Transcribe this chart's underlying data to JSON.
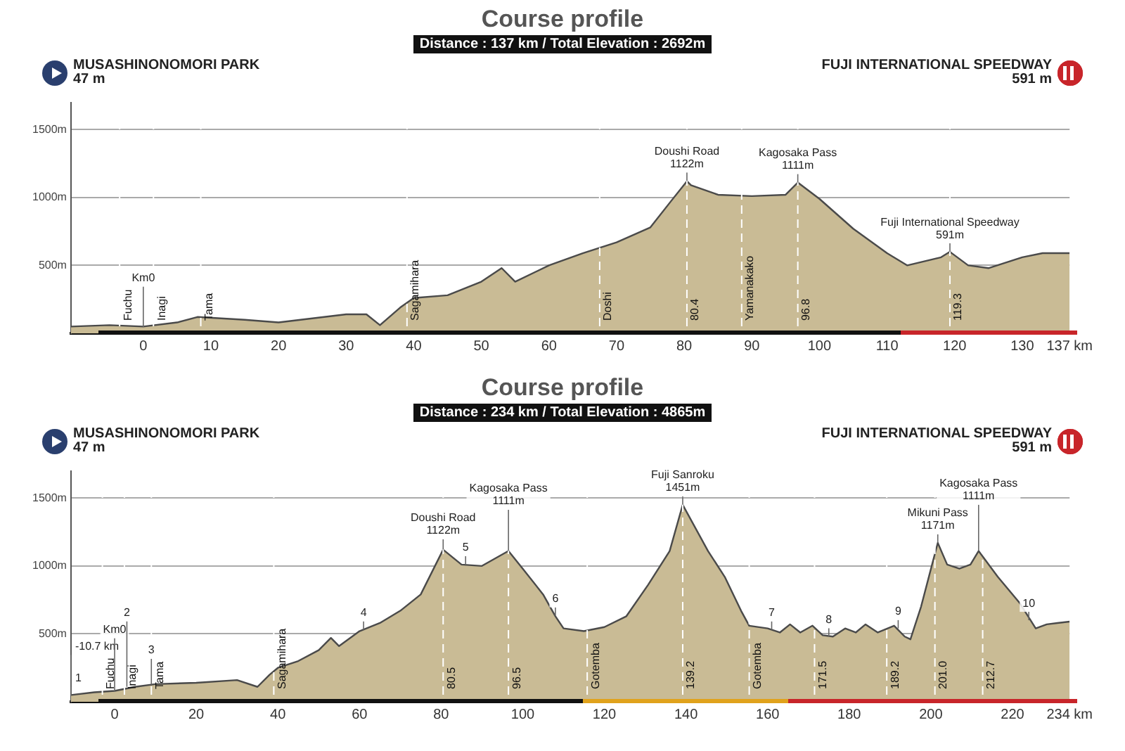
{
  "chart_data": [
    {
      "type": "area",
      "title": "Course profile",
      "subtitle": "Distance : 137 km / Total Elevation : 2692m",
      "x": [
        -10.7,
        -5,
        0,
        5,
        8,
        15,
        20,
        30,
        33,
        35,
        38,
        40,
        45,
        50,
        53,
        55,
        60,
        65,
        70,
        75,
        78,
        80.4,
        81,
        85,
        90,
        95,
        96.8,
        100,
        105,
        110,
        113,
        118,
        119.3,
        122,
        125,
        130,
        133,
        137
      ],
      "series": [
        {
          "color": "#c9bb95",
          "values": [
            50,
            60,
            50,
            80,
            120,
            100,
            80,
            140,
            140,
            60,
            190,
            260,
            280,
            380,
            480,
            380,
            500,
            590,
            670,
            780,
            970,
            1120,
            1090,
            1020,
            1010,
            1020,
            1110,
            990,
            770,
            590,
            500,
            560,
            600,
            500,
            480,
            560,
            590,
            590
          ]
        }
      ],
      "xlim": [
        -10.7,
        137
      ],
      "xticks": [
        0,
        10,
        20,
        30,
        40,
        50,
        60,
        70,
        80,
        90,
        100,
        110,
        120,
        130,
        {
          "value": 137,
          "label": "137 km"
        }
      ],
      "ylim": [
        0,
        1700
      ],
      "yticks": [
        {
          "value": 500,
          "label": "500m"
        },
        {
          "value": 1000,
          "label": "1000m"
        },
        {
          "value": 1500,
          "label": "1500m"
        }
      ],
      "grid": "y",
      "legend": false,
      "marker": "none",
      "line_style": "solid",
      "ref_lines": [
        {
          "axis": "x",
          "value": -3.5,
          "label": "Fuchu"
        },
        {
          "axis": "x",
          "value": 1.5,
          "label": "Inagi"
        },
        {
          "axis": "x",
          "value": 8.5,
          "label": "Tama"
        },
        {
          "axis": "x",
          "value": 39,
          "label": "Sagamihara"
        },
        {
          "axis": "x",
          "value": 67.5,
          "label": "Doshi"
        },
        {
          "axis": "x",
          "value": 80.4,
          "label": "80.4"
        },
        {
          "axis": "x",
          "value": 88.5,
          "label": "Yamanakako"
        },
        {
          "axis": "x",
          "value": 96.8,
          "label": "96.8"
        },
        {
          "axis": "x",
          "value": 119.3,
          "label": "119.3"
        }
      ],
      "annotations": [
        "MUSASHINONOMORI PARK\n47 m",
        "FUJI INTERNATIONAL SPEEDWAY\n591 m",
        {
          "text": "Km0",
          "x": 0,
          "y": 47
        },
        {
          "text": "Doushi Road\n1122m",
          "x": 80.4,
          "y": 1122
        },
        {
          "text": "Kagosaka Pass\n1111m",
          "x": 96.8,
          "y": 1111
        },
        {
          "text": "Fuji International Speedway\n591m",
          "x": 119.3,
          "y": 600
        }
      ]
    },
    {
      "type": "area",
      "title": "Course profile",
      "subtitle": "Distance : 234 km / Total Elevation : 4865m",
      "x": [
        -10.7,
        -5,
        0,
        5,
        10,
        20,
        30,
        35,
        38,
        40,
        45,
        50,
        53,
        55,
        60,
        65,
        70,
        75,
        80.5,
        85,
        90,
        96.5,
        100,
        105,
        108,
        110,
        115,
        120,
        125.4,
        130.7,
        136,
        139.2,
        145.4,
        149.5,
        153.5,
        155.5,
        160,
        163,
        165.5,
        168,
        171,
        173.5,
        176,
        179,
        181.6,
        184,
        187,
        191,
        193.6,
        195,
        197.6,
        200.3,
        201.7,
        204,
        207,
        209.7,
        211.7,
        216.4,
        221.7,
        225.7,
        228.4,
        231,
        234
      ],
      "series": [
        {
          "color": "#c9bb95",
          "values": [
            50,
            70,
            80,
            110,
            130,
            140,
            160,
            110,
            200,
            250,
            300,
            380,
            470,
            410,
            520,
            580,
            670,
            790,
            1120,
            1010,
            1000,
            1110,
            980,
            790,
            630,
            540,
            520,
            550,
            630,
            860,
            1110,
            1450,
            1110,
            920,
            670,
            560,
            540,
            510,
            570,
            510,
            560,
            490,
            480,
            540,
            510,
            570,
            510,
            560,
            480,
            460,
            700,
            1010,
            1170,
            1010,
            980,
            1010,
            1110,
            920,
            730,
            540,
            570,
            580,
            590
          ]
        }
      ],
      "xlim": [
        -10.7,
        234
      ],
      "xticks": [
        0,
        20,
        40,
        60,
        80,
        100,
        120,
        140,
        160,
        180,
        200,
        220,
        {
          "value": 234,
          "label": "234 km"
        }
      ],
      "ylim": [
        0,
        1700
      ],
      "yticks": [
        {
          "value": 500,
          "label": "500m"
        },
        {
          "value": 1000,
          "label": "1000m"
        },
        {
          "value": 1500,
          "label": "1500m"
        }
      ],
      "grid": "y",
      "legend": false,
      "marker": "none",
      "line_style": "solid",
      "ref_lines": [
        {
          "axis": "x",
          "value": -3,
          "label": "Fuchu"
        },
        {
          "axis": "x",
          "value": 2.4,
          "label": "Inagi"
        },
        {
          "axis": "x",
          "value": 9,
          "label": "Tama"
        },
        {
          "axis": "x",
          "value": 39,
          "label": "Sagamihara"
        },
        {
          "axis": "x",
          "value": 80.5,
          "label": "80.5"
        },
        {
          "axis": "x",
          "value": 96.5,
          "label": "96.5"
        },
        {
          "axis": "x",
          "value": 115.8,
          "label": "Gotemba"
        },
        {
          "axis": "x",
          "value": 139.2,
          "label": "139.2"
        },
        {
          "axis": "x",
          "value": 155.5,
          "label": "Gotemba"
        },
        {
          "axis": "x",
          "value": 171.5,
          "label": "171.5"
        },
        {
          "axis": "x",
          "value": 189.2,
          "label": "189.2"
        },
        {
          "axis": "x",
          "value": 201.0,
          "label": "201.0"
        },
        {
          "axis": "x",
          "value": 212.7,
          "label": "212.7"
        }
      ],
      "annotations": [
        "MUSASHINONOMORI PARK\n47 m",
        "FUJI INTERNATIONAL SPEEDWAY\n591 m",
        {
          "text": "-10.7 km",
          "x": -10.7,
          "y": 47
        },
        {
          "text": "Km0",
          "x": 0,
          "y": 76
        },
        {
          "text": "1",
          "x": -10.7,
          "y": 47
        },
        {
          "text": "2",
          "x": 3,
          "y": 110
        },
        {
          "text": "3",
          "x": 9,
          "y": 127
        },
        {
          "text": "4",
          "x": 61,
          "y": 530
        },
        {
          "text": "5",
          "x": 86,
          "y": 1010
        },
        {
          "text": "6",
          "x": 108,
          "y": 633
        },
        {
          "text": "7",
          "x": 161,
          "y": 530
        },
        {
          "text": "8",
          "x": 175,
          "y": 480
        },
        {
          "text": "9",
          "x": 192,
          "y": 540
        },
        {
          "text": "10",
          "x": 224,
          "y": 600
        },
        {
          "text": "Doushi Road\n1122m",
          "x": 80.5,
          "y": 1122
        },
        {
          "text": "Kagosaka Pass\n1111m",
          "x": 96.5,
          "y": 1111
        },
        {
          "text": "Fuji Sanroku\n1451m",
          "x": 139.2,
          "y": 1451
        },
        {
          "text": "Mikuni Pass\n1171m",
          "x": 201.7,
          "y": 1171
        },
        {
          "text": "Kagosaka Pass\n1111m",
          "x": 211.7,
          "y": 1111
        }
      ]
    }
  ]
}
